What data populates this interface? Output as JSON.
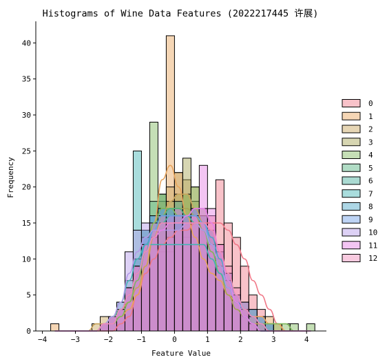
{
  "chart_data": {
    "type": "histogram",
    "title": "Histograms of Wine Data Features (2022217445 许展)",
    "xlabel": "Feature Value",
    "ylabel": "Frequency",
    "xlim": [
      -4.2,
      4.6
    ],
    "ylim": [
      0,
      43
    ],
    "xticks": [
      -4,
      -3,
      -2,
      -1,
      0,
      1,
      2,
      3,
      4
    ],
    "yticks": [
      0,
      5,
      10,
      15,
      20,
      25,
      30,
      35,
      40
    ],
    "grid": false,
    "legend_position": "right",
    "kde": true,
    "bins": {
      "start": -3.75,
      "width": 0.25,
      "count": 32
    },
    "series": [
      {
        "name": "0",
        "color": "#f07888",
        "values": [
          0,
          0,
          0,
          0,
          0,
          0,
          0,
          0,
          0,
          3,
          5,
          8,
          12,
          11,
          14,
          13,
          14,
          16,
          12,
          16,
          21,
          15,
          13,
          9,
          5,
          3,
          1,
          0,
          0,
          0,
          0,
          0
        ],
        "kde": [
          0,
          0,
          0,
          0,
          0,
          0,
          0,
          0,
          1,
          2,
          5,
          8,
          10,
          12,
          13,
          14,
          14,
          15,
          15,
          15,
          15,
          14,
          12,
          10,
          7,
          5,
          3,
          1,
          0,
          0,
          0,
          0
        ]
      },
      {
        "name": "1",
        "color": "#e8a45c",
        "values": [
          1,
          0,
          0,
          0,
          0,
          0,
          1,
          2,
          2,
          3,
          4,
          6,
          10,
          19,
          41,
          22,
          19,
          16,
          13,
          8,
          8,
          5,
          4,
          3,
          3,
          2,
          2,
          1,
          0,
          0,
          0,
          0
        ],
        "kde": [
          0,
          0,
          0,
          0,
          0,
          0,
          1,
          1,
          2,
          3,
          5,
          9,
          15,
          21,
          23,
          20,
          16,
          13,
          10,
          8,
          7,
          5,
          4,
          3,
          2,
          2,
          1,
          1,
          0,
          0,
          0,
          0
        ]
      },
      {
        "name": "2",
        "color": "#c8a35a",
        "values": [
          0,
          0,
          0,
          0,
          0,
          1,
          2,
          2,
          3,
          4,
          5,
          8,
          12,
          18,
          20,
          22,
          21,
          20,
          16,
          14,
          10,
          7,
          4,
          2,
          1,
          1,
          0,
          0,
          0,
          0,
          0,
          0
        ],
        "kde": [
          0,
          0,
          0,
          0,
          0,
          1,
          1,
          2,
          3,
          4,
          6,
          9,
          13,
          16,
          18,
          19,
          19,
          17,
          15,
          12,
          9,
          6,
          4,
          2,
          1,
          1,
          0,
          0,
          0,
          0,
          0,
          0
        ]
      },
      {
        "name": "3",
        "color": "#a6a555",
        "values": [
          0,
          0,
          0,
          0,
          0,
          0,
          1,
          2,
          3,
          5,
          8,
          12,
          15,
          17,
          18,
          19,
          24,
          18,
          16,
          14,
          10,
          7,
          4,
          2,
          1,
          0,
          0,
          0,
          0,
          0,
          0,
          0
        ],
        "kde": [
          0,
          0,
          0,
          0,
          0,
          0,
          1,
          2,
          3,
          5,
          8,
          11,
          14,
          16,
          17,
          17,
          17,
          16,
          14,
          11,
          8,
          5,
          3,
          2,
          1,
          0,
          0,
          0,
          0,
          0,
          0,
          0
        ]
      },
      {
        "name": "4",
        "color": "#7fb85d",
        "values": [
          0,
          0,
          0,
          0,
          0,
          0,
          1,
          2,
          3,
          5,
          8,
          12,
          29,
          19,
          13,
          14,
          19,
          20,
          15,
          11,
          8,
          6,
          4,
          3,
          2,
          1,
          1,
          1,
          1,
          1,
          0,
          1
        ],
        "kde": [
          0,
          0,
          0,
          0,
          0,
          0,
          1,
          1,
          2,
          4,
          7,
          11,
          15,
          17,
          17,
          16,
          16,
          15,
          14,
          11,
          8,
          6,
          4,
          3,
          2,
          1,
          1,
          1,
          1,
          0,
          0,
          0
        ]
      },
      {
        "name": "5",
        "color": "#4fb27f",
        "values": [
          0,
          0,
          0,
          0,
          0,
          0,
          1,
          2,
          3,
          6,
          10,
          14,
          18,
          19,
          17,
          15,
          16,
          17,
          16,
          13,
          10,
          7,
          4,
          2,
          1,
          0,
          0,
          0,
          0,
          0,
          0,
          0
        ],
        "kde": [
          0,
          0,
          0,
          0,
          0,
          0,
          1,
          2,
          3,
          5,
          8,
          11,
          14,
          16,
          17,
          17,
          16,
          16,
          15,
          12,
          9,
          6,
          4,
          2,
          1,
          0,
          0,
          0,
          0,
          0,
          0,
          0
        ]
      },
      {
        "name": "6",
        "color": "#42ad9c",
        "values": [
          0,
          0,
          0,
          0,
          0,
          0,
          1,
          2,
          3,
          6,
          9,
          12,
          15,
          16,
          17,
          18,
          16,
          17,
          16,
          13,
          10,
          7,
          5,
          3,
          1,
          0,
          0,
          0,
          0,
          0,
          0,
          0
        ],
        "kde": [
          0,
          0,
          0,
          0,
          0,
          0,
          1,
          1,
          3,
          5,
          8,
          11,
          13,
          15,
          16,
          16,
          16,
          15,
          14,
          12,
          9,
          6,
          4,
          2,
          1,
          0,
          0,
          0,
          0,
          0,
          0,
          0
        ]
      },
      {
        "name": "7",
        "color": "#40b4b4",
        "values": [
          0,
          0,
          0,
          0,
          0,
          0,
          1,
          2,
          4,
          7,
          25,
          14,
          12,
          11,
          11,
          12,
          13,
          13,
          12,
          10,
          8,
          6,
          4,
          2,
          1,
          0,
          0,
          0,
          0,
          0,
          0,
          0
        ],
        "kde": [
          0,
          0,
          0,
          0,
          0,
          0,
          1,
          2,
          4,
          7,
          10,
          12,
          12,
          12,
          12,
          12,
          12,
          12,
          12,
          10,
          8,
          6,
          4,
          2,
          1,
          0,
          0,
          0,
          0,
          0,
          0,
          0
        ]
      },
      {
        "name": "8",
        "color": "#4aa7c8",
        "values": [
          0,
          0,
          0,
          0,
          0,
          0,
          1,
          2,
          3,
          6,
          10,
          14,
          16,
          17,
          16,
          15,
          16,
          17,
          17,
          14,
          11,
          8,
          5,
          4,
          3,
          2,
          1,
          0,
          0,
          0,
          0,
          0
        ],
        "kde": [
          0,
          0,
          0,
          0,
          0,
          0,
          1,
          1,
          3,
          5,
          8,
          12,
          14,
          16,
          16,
          16,
          16,
          16,
          15,
          13,
          10,
          7,
          5,
          3,
          2,
          1,
          0,
          0,
          0,
          0,
          0,
          0
        ]
      },
      {
        "name": "9",
        "color": "#6e9fe8",
        "values": [
          0,
          0,
          0,
          0,
          0,
          0,
          1,
          2,
          3,
          6,
          9,
          13,
          16,
          17,
          17,
          16,
          15,
          16,
          16,
          14,
          11,
          8,
          5,
          4,
          3,
          2,
          1,
          0,
          0,
          0,
          0,
          0
        ],
        "kde": [
          0,
          0,
          0,
          0,
          0,
          0,
          1,
          1,
          3,
          5,
          8,
          11,
          14,
          16,
          16,
          16,
          16,
          16,
          15,
          12,
          9,
          6,
          4,
          3,
          2,
          1,
          0,
          0,
          0,
          0,
          0,
          0
        ]
      },
      {
        "name": "10",
        "color": "#b39ae8",
        "values": [
          0,
          0,
          0,
          0,
          0,
          0,
          1,
          2,
          4,
          11,
          14,
          15,
          13,
          12,
          13,
          14,
          15,
          16,
          15,
          12,
          9,
          7,
          5,
          3,
          1,
          0,
          0,
          0,
          0,
          0,
          0,
          0
        ],
        "kde": [
          0,
          0,
          0,
          0,
          0,
          0,
          1,
          2,
          4,
          8,
          11,
          13,
          14,
          14,
          14,
          14,
          15,
          15,
          14,
          12,
          9,
          6,
          4,
          2,
          1,
          0,
          0,
          0,
          0,
          0,
          0,
          0
        ]
      },
      {
        "name": "11",
        "color": "#e57fe5",
        "values": [
          0,
          0,
          0,
          0,
          0,
          0,
          1,
          2,
          3,
          6,
          9,
          12,
          14,
          15,
          16,
          17,
          16,
          17,
          23,
          17,
          12,
          8,
          5,
          3,
          1,
          0,
          0,
          0,
          0,
          0,
          0,
          0
        ],
        "kde": [
          0,
          0,
          0,
          0,
          0,
          0,
          1,
          1,
          3,
          5,
          8,
          11,
          13,
          14,
          15,
          15,
          16,
          17,
          17,
          15,
          11,
          7,
          4,
          2,
          1,
          0,
          0,
          0,
          0,
          0,
          0,
          0
        ]
      },
      {
        "name": "12",
        "color": "#f08ab8",
        "values": [
          0,
          0,
          0,
          0,
          0,
          0,
          1,
          2,
          3,
          6,
          9,
          12,
          15,
          16,
          15,
          14,
          15,
          16,
          17,
          15,
          12,
          9,
          6,
          4,
          2,
          1,
          0,
          0,
          0,
          0,
          0,
          0
        ],
        "kde": [
          0,
          0,
          0,
          0,
          0,
          0,
          1,
          1,
          3,
          5,
          8,
          11,
          13,
          15,
          15,
          15,
          15,
          15,
          15,
          14,
          11,
          8,
          5,
          3,
          2,
          1,
          0,
          0,
          0,
          0,
          0,
          0
        ]
      }
    ]
  }
}
